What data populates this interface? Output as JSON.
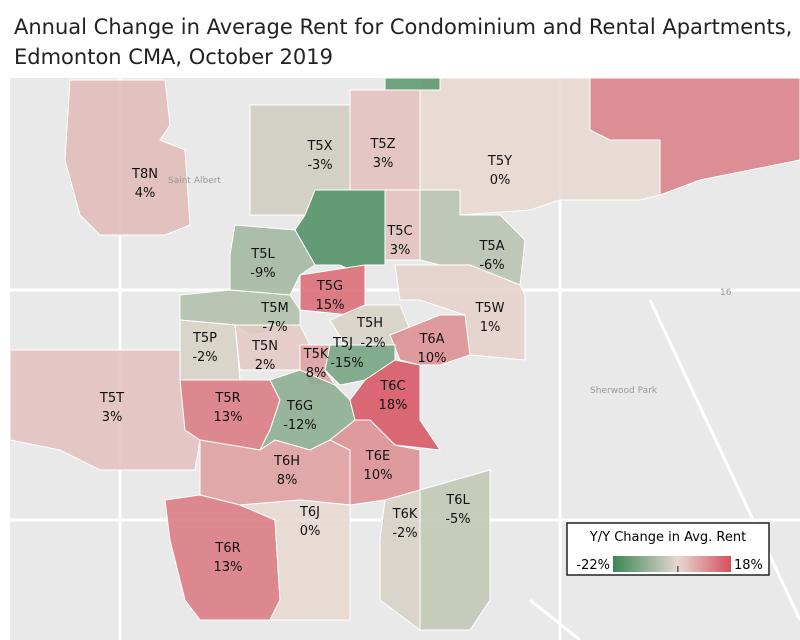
{
  "title": [
    "Annual Change in Average Rent for Condominium and Rental Apartments,",
    "Edmonton CMA, October 2019"
  ],
  "places": [
    "Saint Albert",
    "Sherwood Park",
    "16"
  ],
  "regions": [
    {
      "code": "T8N",
      "value": 4,
      "label": "4%"
    },
    {
      "code": "T5X",
      "value": -3,
      "label": "-3%"
    },
    {
      "code": "T5Z",
      "value": 3,
      "label": "3%"
    },
    {
      "code": "T5Y",
      "value": 0,
      "label": "0%"
    },
    {
      "value": 12
    },
    {
      "value": -20
    },
    {
      "code": "T5C",
      "value": 3,
      "label": "3%"
    },
    {
      "code": "T5A",
      "value": -6,
      "label": "-6%"
    },
    {
      "code": "T5L",
      "value": -9,
      "label": "-9%"
    },
    {
      "code": "T5G",
      "value": 15,
      "label": "15%"
    },
    {
      "code": "T5W",
      "value": 1,
      "label": "1%"
    },
    {
      "code": "T5M",
      "value": -7,
      "label": "-7%"
    },
    {
      "code": "T5P",
      "value": -2,
      "label": "-2%"
    },
    {
      "code": "T5N",
      "value": 2,
      "label": "2%"
    },
    {
      "code": "T5H",
      "value": -2,
      "label": "-2%"
    },
    {
      "code": "T6A",
      "value": 10,
      "label": "10%"
    },
    {
      "code": "T5J",
      "value": -15,
      "label": "-15%"
    },
    {
      "code": "T5K",
      "value": 8,
      "label": "8%"
    },
    {
      "code": "T5T",
      "value": 3,
      "label": "3%"
    },
    {
      "code": "T5R",
      "value": 13,
      "label": "13%"
    },
    {
      "code": "T6G",
      "value": -12,
      "label": "-12%"
    },
    {
      "code": "T6C",
      "value": 18,
      "label": "18%"
    },
    {
      "code": "T6H",
      "value": 8,
      "label": "8%"
    },
    {
      "code": "T6E",
      "value": 10,
      "label": "10%"
    },
    {
      "code": "T6R",
      "value": 13,
      "label": "13%"
    },
    {
      "code": "T6J",
      "value": 0,
      "label": "0%"
    },
    {
      "code": "T6K",
      "value": -2,
      "label": "-2%"
    },
    {
      "code": "T6L",
      "value": -5,
      "label": "-5%"
    },
    {
      "value": -18
    }
  ],
  "legend": {
    "title": "Y/Y Change in Avg. Rent",
    "min": {
      "value": -22,
      "label": "-22%"
    },
    "max": {
      "value": 18,
      "label": "18%"
    }
  }
}
